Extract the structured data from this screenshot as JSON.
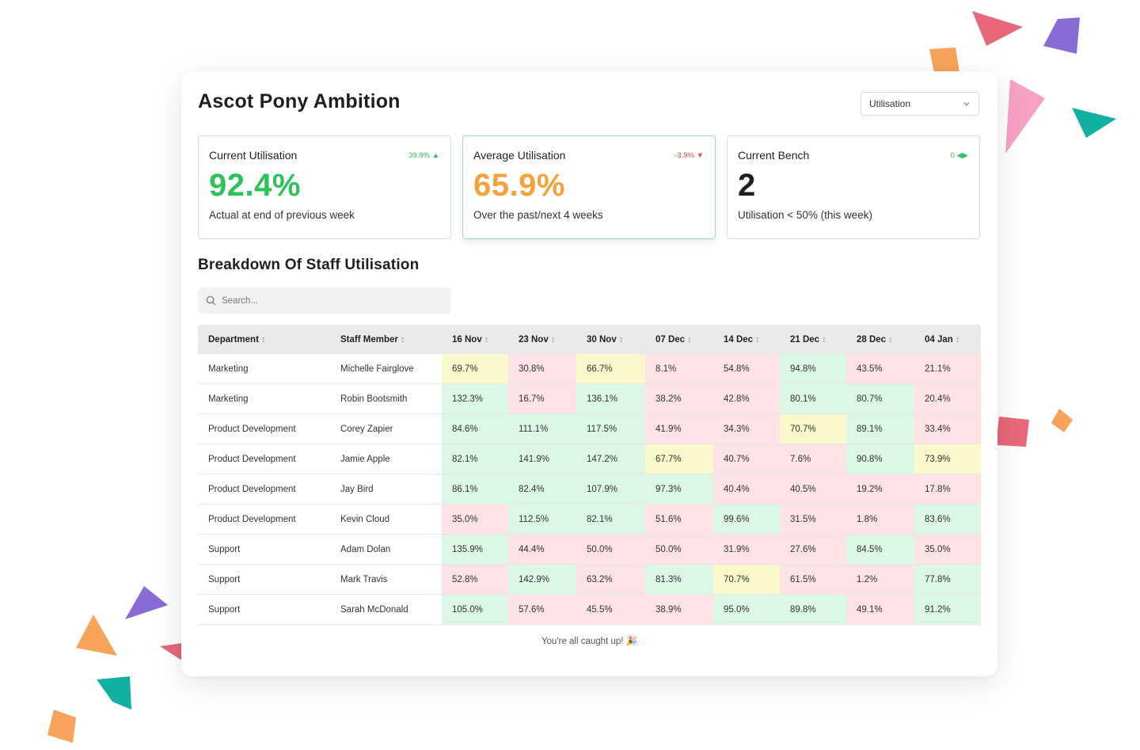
{
  "app": {
    "title": "Ascot Pony Ambition",
    "view_select": "Utilisation"
  },
  "colors": {
    "green": "#2ec25a",
    "orange": "#f5a23a",
    "red": "#e84b4b",
    "cell_green": "#dcf7e3",
    "cell_red": "#fde3e5",
    "cell_yellow": "#fbf8cc"
  },
  "stats": [
    {
      "title": "Current Utilisation",
      "delta": "39.9% ▲",
      "value": "92.4%",
      "sub": "Actual at end of previous week"
    },
    {
      "title": "Average Utilisation",
      "delta": "-3.9% ▼",
      "value": "65.9%",
      "sub": "Over the past/next 4 weeks"
    },
    {
      "title": "Current Bench",
      "delta": "0 ◀▶",
      "value": "2",
      "sub": "Utilisation < 50% (this week)"
    }
  ],
  "breakdown": {
    "title": "Breakdown Of Staff Utilisation",
    "search_placeholder": "Search...",
    "columns": [
      "Department",
      "Staff Member",
      "16 Nov",
      "23 Nov",
      "30 Nov",
      "07 Dec",
      "14 Dec",
      "21 Dec",
      "28 Dec",
      "04 Jan"
    ],
    "rows": [
      {
        "department": "Marketing",
        "staff": "Michelle Fairglove",
        "values": [
          "69.7%",
          "30.8%",
          "66.7%",
          "8.1%",
          "54.8%",
          "94.8%",
          "43.5%",
          "21.1%"
        ],
        "levels": [
          "y",
          "r",
          "y",
          "r",
          "r",
          "g",
          "r",
          "r"
        ]
      },
      {
        "department": "Marketing",
        "staff": "Robin Bootsmith",
        "values": [
          "132.3%",
          "16.7%",
          "136.1%",
          "38.2%",
          "42.8%",
          "80.1%",
          "80.7%",
          "20.4%"
        ],
        "levels": [
          "g",
          "r",
          "g",
          "r",
          "r",
          "g",
          "g",
          "r"
        ]
      },
      {
        "department": "Product Development",
        "staff": "Corey Zapier",
        "values": [
          "84.6%",
          "111.1%",
          "117.5%",
          "41.9%",
          "34.3%",
          "70.7%",
          "89.1%",
          "33.4%"
        ],
        "levels": [
          "g",
          "g",
          "g",
          "r",
          "r",
          "y",
          "g",
          "r"
        ]
      },
      {
        "department": "Product Development",
        "staff": "Jamie Apple",
        "values": [
          "82.1%",
          "141.9%",
          "147.2%",
          "67.7%",
          "40.7%",
          "7.6%",
          "90.8%",
          "73.9%"
        ],
        "levels": [
          "g",
          "g",
          "g",
          "y",
          "r",
          "r",
          "g",
          "y"
        ]
      },
      {
        "department": "Product Development",
        "staff": "Jay Bird",
        "values": [
          "86.1%",
          "82.4%",
          "107.9%",
          "97.3%",
          "40.4%",
          "40.5%",
          "19.2%",
          "17.8%"
        ],
        "levels": [
          "g",
          "g",
          "g",
          "g",
          "r",
          "r",
          "r",
          "r"
        ]
      },
      {
        "department": "Product Development",
        "staff": "Kevin Cloud",
        "values": [
          "35.0%",
          "112.5%",
          "82.1%",
          "51.6%",
          "99.6%",
          "31.5%",
          "1.8%",
          "83.6%"
        ],
        "levels": [
          "r",
          "g",
          "g",
          "r",
          "g",
          "r",
          "r",
          "g"
        ]
      },
      {
        "department": "Support",
        "staff": "Adam Dolan",
        "values": [
          "135.9%",
          "44.4%",
          "50.0%",
          "50.0%",
          "31.9%",
          "27.6%",
          "84.5%",
          "35.0%"
        ],
        "levels": [
          "g",
          "r",
          "r",
          "r",
          "r",
          "r",
          "g",
          "r"
        ]
      },
      {
        "department": "Support",
        "staff": "Mark Travis",
        "values": [
          "52.8%",
          "142.9%",
          "63.2%",
          "81.3%",
          "70.7%",
          "61.5%",
          "1.2%",
          "77.8%"
        ],
        "levels": [
          "r",
          "g",
          "r",
          "g",
          "y",
          "r",
          "r",
          "g"
        ]
      },
      {
        "department": "Support",
        "staff": "Sarah McDonald",
        "values": [
          "105.0%",
          "57.6%",
          "45.5%",
          "38.9%",
          "95.0%",
          "89.8%",
          "49.1%",
          "91.2%"
        ],
        "levels": [
          "g",
          "r",
          "r",
          "r",
          "g",
          "g",
          "r",
          "g"
        ]
      }
    ],
    "footer": "You're all caught up! 🎉"
  }
}
